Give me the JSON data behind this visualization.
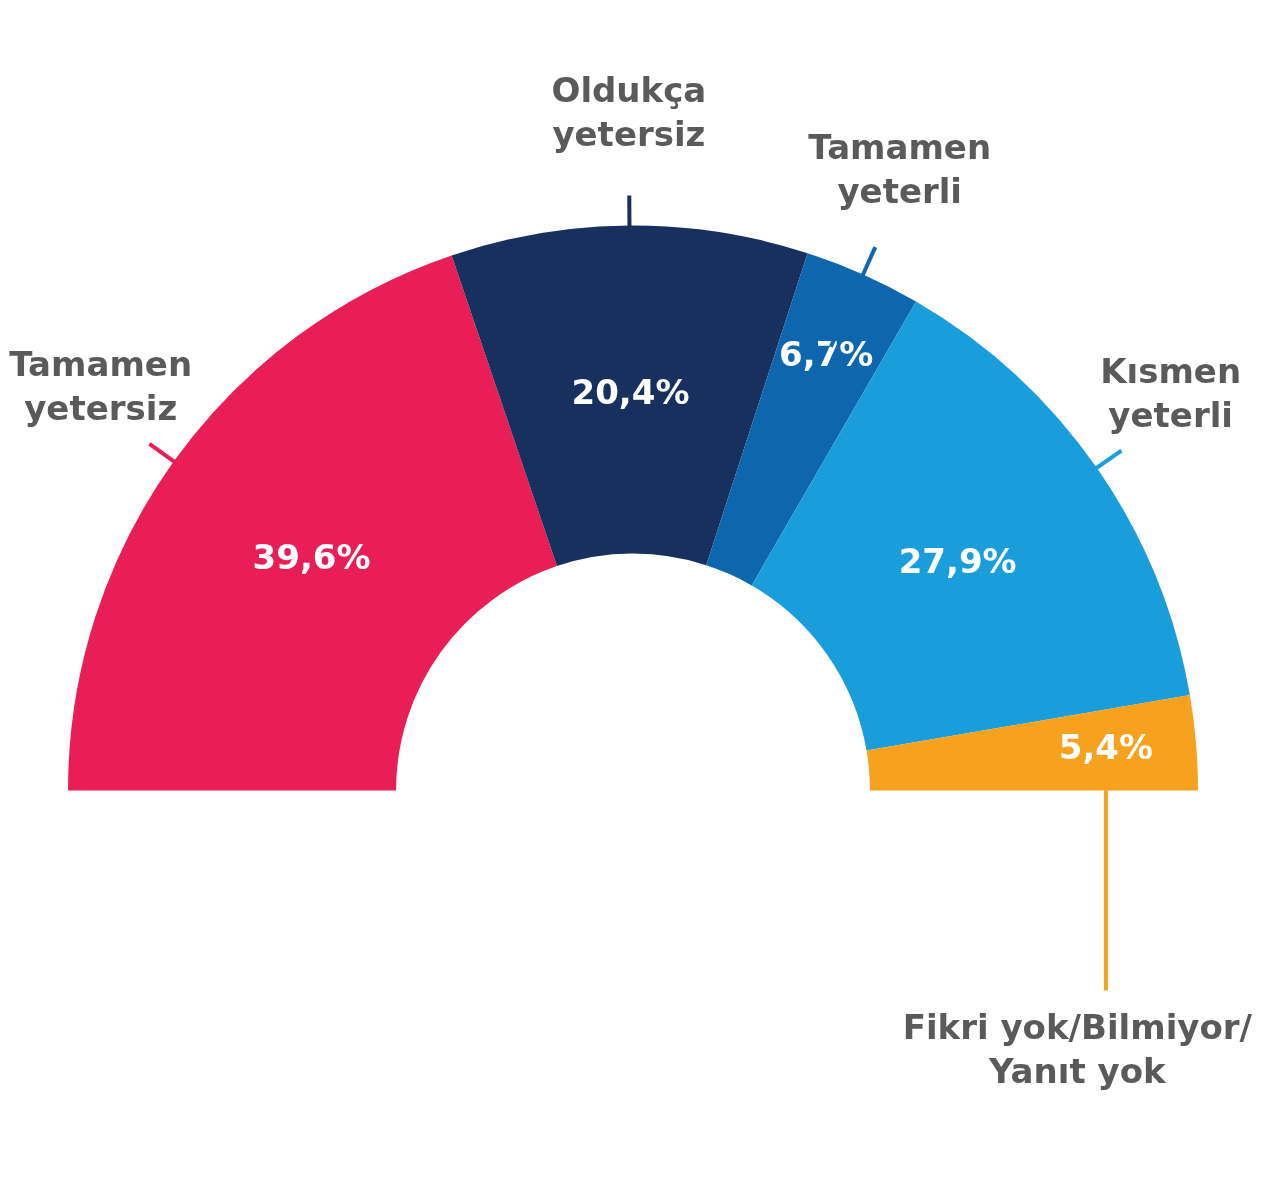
{
  "chart_data": {
    "type": "donut",
    "categories": [
      "Tamamen yetersiz",
      "Oldukça yetersiz",
      "Tamamen yeterli",
      "Kısmen yeterli",
      "Fikri yok/Bilmiyor/ Yanıt yok"
    ],
    "values": [
      39.6,
      20.4,
      6.7,
      27.9,
      5.4
    ],
    "colors": [
      "#e91e57",
      "#17305e",
      "#0e66ae",
      "#1a9edb",
      "#f6a21e"
    ],
    "value_labels": [
      "39,6%",
      "20,4%",
      "6,7%",
      "27,9%",
      "5,4%"
    ]
  }
}
